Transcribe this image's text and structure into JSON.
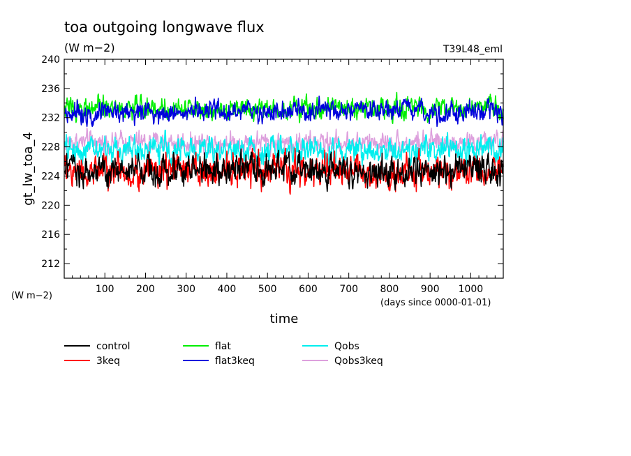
{
  "chart_data": {
    "type": "line",
    "title": "toa outgoing longwave flux",
    "units": "(W m−2)",
    "run_label": "T39L48_eml",
    "xlabel": "time",
    "x_unit_note": "(days since 0000-01-01)",
    "ylabel": "gt_lw_toa_4",
    "y_unit_note": "(W m−2)",
    "xlim": [
      0,
      1080
    ],
    "ylim": [
      210,
      240
    ],
    "x_ticks": [
      100,
      200,
      300,
      400,
      500,
      600,
      700,
      800,
      900,
      1000
    ],
    "y_ticks": [
      212,
      216,
      220,
      224,
      228,
      232,
      236,
      240
    ],
    "grid": false,
    "legend_position": "bottom",
    "series": [
      {
        "name": "control",
        "color": "#000000",
        "mean": 224.8,
        "fluctuation": 1.3,
        "min": 221.5,
        "max": 228.0
      },
      {
        "name": "3keq",
        "color": "#ff0000",
        "mean": 224.6,
        "fluctuation": 1.4,
        "min": 221.5,
        "max": 227.8
      },
      {
        "name": "flat",
        "color": "#00ee00",
        "mean": 233.3,
        "fluctuation": 0.9,
        "min": 231.0,
        "max": 236.0
      },
      {
        "name": "flat3keq",
        "color": "#0000dd",
        "mean": 232.8,
        "fluctuation": 0.9,
        "min": 230.8,
        "max": 235.5
      },
      {
        "name": "Qobs",
        "color": "#00eeee",
        "mean": 227.6,
        "fluctuation": 1.1,
        "min": 225.0,
        "max": 231.0
      },
      {
        "name": "Qobs3keq",
        "color": "#dda0dd",
        "mean": 228.6,
        "fluctuation": 0.9,
        "min": 226.0,
        "max": 231.0
      }
    ],
    "draw_order": [
      "Qobs3keq",
      "Qobs",
      "flat",
      "flat3keq",
      "3keq",
      "control"
    ]
  }
}
